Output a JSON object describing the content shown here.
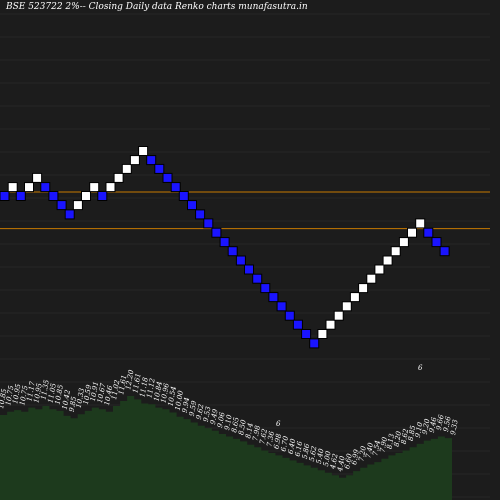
{
  "title": "BSE 523722  2%-- Closing Daily data Renko  charts munafasutra.in",
  "colors": {
    "background": "#000000",
    "panel": "#1c1c1c",
    "grid": "#262626",
    "up_brick": "#ffffff",
    "down_brick": "#1a14ff",
    "reference_line": "#c87a00",
    "area_fill": "#1d3a1d"
  },
  "chart_data": [
    {
      "type": "renko",
      "title": "",
      "bricks": [
        {
          "direction": "down",
          "value": 10.58
        },
        {
          "direction": "up",
          "value": 10.79
        },
        {
          "direction": "down",
          "value": 10.58
        },
        {
          "direction": "up",
          "value": 10.79
        },
        {
          "direction": "up",
          "value": 11.01
        },
        {
          "direction": "down",
          "value": 10.79
        },
        {
          "direction": "down",
          "value": 10.58
        },
        {
          "direction": "down",
          "value": 10.37
        },
        {
          "direction": "down",
          "value": 10.16
        },
        {
          "direction": "up",
          "value": 10.37
        },
        {
          "direction": "up",
          "value": 10.58
        },
        {
          "direction": "up",
          "value": 10.79
        },
        {
          "direction": "down",
          "value": 10.58
        },
        {
          "direction": "up",
          "value": 10.79
        },
        {
          "direction": "up",
          "value": 11.01
        },
        {
          "direction": "up",
          "value": 11.23
        },
        {
          "direction": "up",
          "value": 11.45
        },
        {
          "direction": "up",
          "value": 11.68
        },
        {
          "direction": "down",
          "value": 11.45
        },
        {
          "direction": "down",
          "value": 11.23
        },
        {
          "direction": "down",
          "value": 11.01
        },
        {
          "direction": "down",
          "value": 10.79
        },
        {
          "direction": "down",
          "value": 10.58
        },
        {
          "direction": "down",
          "value": 10.37
        },
        {
          "direction": "down",
          "value": 10.16
        },
        {
          "direction": "down",
          "value": 9.96
        },
        {
          "direction": "down",
          "value": 9.76
        },
        {
          "direction": "down",
          "value": 9.56
        },
        {
          "direction": "down",
          "value": 9.37
        },
        {
          "direction": "down",
          "value": 9.18
        },
        {
          "direction": "down",
          "value": 9.0
        },
        {
          "direction": "down",
          "value": 8.82
        },
        {
          "direction": "down",
          "value": 8.64
        },
        {
          "direction": "down",
          "value": 8.47
        },
        {
          "direction": "down",
          "value": 8.3
        },
        {
          "direction": "down",
          "value": 8.13
        },
        {
          "direction": "down",
          "value": 7.97
        },
        {
          "direction": "down",
          "value": 7.81
        },
        {
          "direction": "down",
          "value": 7.65
        },
        {
          "direction": "up",
          "value": 7.81
        },
        {
          "direction": "up",
          "value": 7.97
        },
        {
          "direction": "up",
          "value": 8.13
        },
        {
          "direction": "up",
          "value": 8.3
        },
        {
          "direction": "up",
          "value": 8.47
        },
        {
          "direction": "up",
          "value": 8.64
        },
        {
          "direction": "up",
          "value": 8.82
        },
        {
          "direction": "up",
          "value": 9.0
        },
        {
          "direction": "up",
          "value": 9.18
        },
        {
          "direction": "up",
          "value": 9.37
        },
        {
          "direction": "up",
          "value": 9.56
        },
        {
          "direction": "up",
          "value": 9.76
        },
        {
          "direction": "up",
          "value": 9.96
        },
        {
          "direction": "down",
          "value": 9.76
        },
        {
          "direction": "down",
          "value": 9.56
        },
        {
          "direction": "down",
          "value": 9.37
        }
      ],
      "reference_lines": [
        10.58,
        9.76
      ],
      "ylim": [
        7.3,
        12.5
      ],
      "area_labels": [
        "10.85",
        "10.75",
        "10.95",
        "10.75",
        "11.17",
        "10.95",
        "11.35",
        "11.05",
        "10.85",
        "10.42",
        "9.85",
        "10.33",
        "10.59",
        "10.91",
        "10.67",
        "10.46",
        "11.02",
        "11.61",
        "12.20",
        "11.61",
        "11.18",
        "11.12",
        "10.84",
        "10.96",
        "10.54",
        "10.00",
        "9.94",
        "9.59",
        "9.62",
        "9.53",
        "9.49",
        "9.06",
        "9.10",
        "8.65",
        "8.50",
        "8.14",
        "7.98",
        "7.62",
        "7.36",
        "6.98",
        "6.70",
        "6.40",
        "6.16",
        "5.86",
        "5.62",
        "5.40",
        "5.00",
        "4.62",
        "4.40",
        "6.60",
        "6.99",
        "7.20",
        "7.40",
        "7.54",
        "7.90",
        "8.13",
        "8.20",
        "8.62",
        "8.85",
        "9.10",
        "9.20",
        "9.46",
        "9.66",
        "9.56",
        "9.33"
      ],
      "area_values": [
        9.15,
        9.35,
        9.45,
        9.35,
        9.6,
        9.5,
        9.7,
        9.5,
        9.4,
        9.1,
        8.95,
        9.2,
        9.4,
        9.6,
        9.5,
        9.35,
        9.7,
        10.0,
        10.3,
        10.1,
        9.85,
        9.8,
        9.6,
        9.5,
        9.3,
        9.05,
        8.9,
        8.7,
        8.5,
        8.35,
        8.2,
        8.0,
        7.85,
        7.7,
        7.55,
        7.35,
        7.2,
        7.0,
        6.85,
        6.7,
        6.55,
        6.4,
        6.25,
        6.1,
        5.95,
        5.8,
        5.65,
        5.5,
        5.35,
        5.5,
        5.75,
        5.95,
        6.15,
        6.3,
        6.5,
        6.7,
        6.85,
        7.0,
        7.2,
        7.4,
        7.6,
        7.7,
        7.85,
        7.75,
        7.55
      ],
      "extra_labels": [
        "6",
        "6"
      ]
    }
  ]
}
